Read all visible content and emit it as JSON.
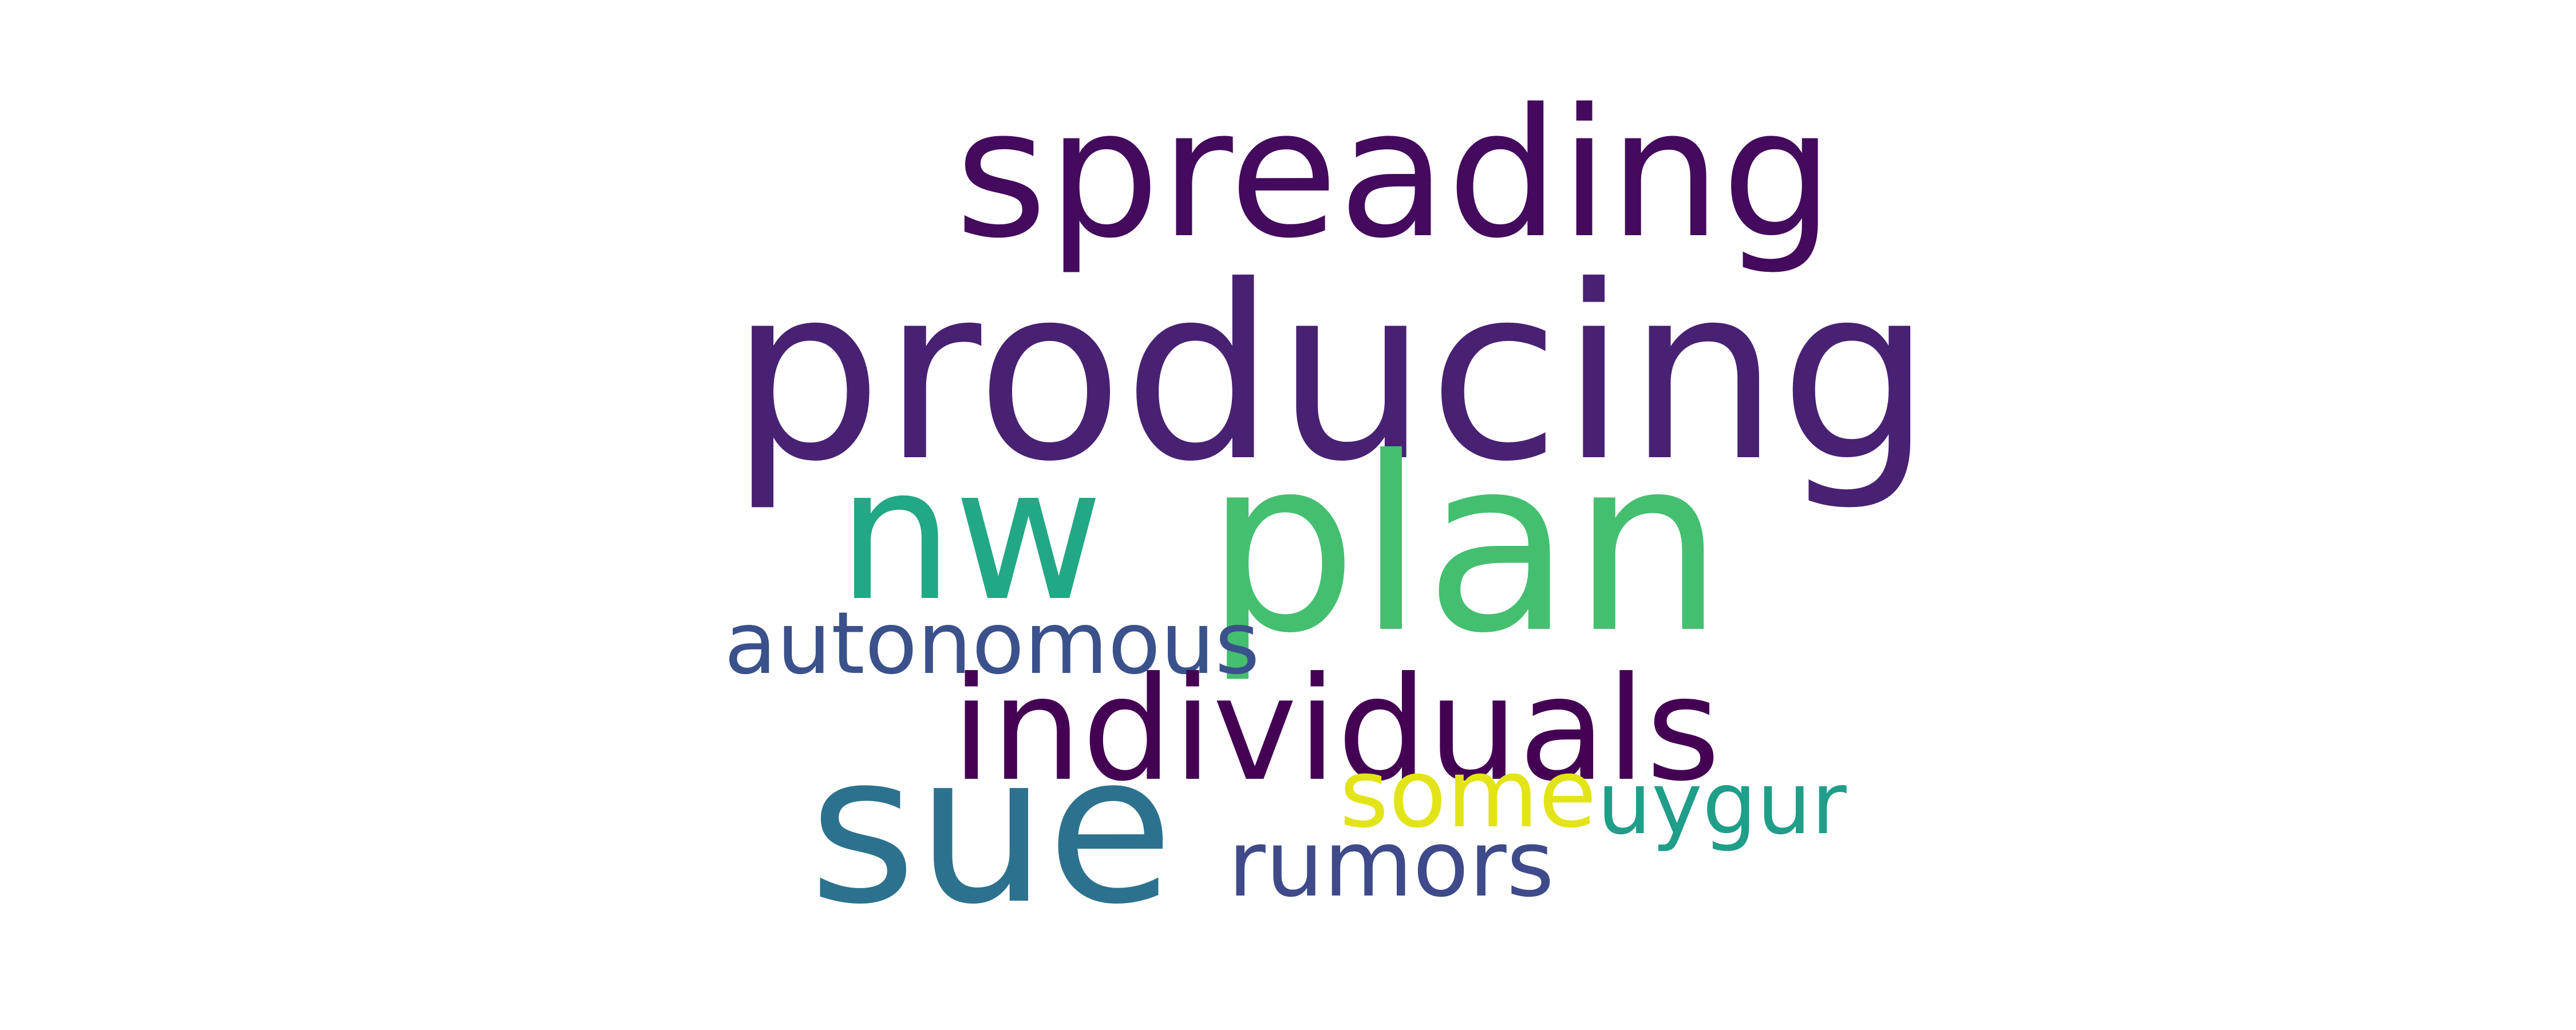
{
  "words": {
    "spreading": {
      "text": "spreading",
      "color": "#440a5e"
    },
    "producing": {
      "text": "producing",
      "color": "#482173"
    },
    "nw": {
      "text": "nw",
      "color": "#22a884"
    },
    "plan": {
      "text": "plan",
      "color": "#44bf70"
    },
    "autonomous": {
      "text": "autonomous",
      "color": "#3b518b"
    },
    "individuals": {
      "text": "individuals",
      "color": "#440154"
    },
    "sue": {
      "text": "sue",
      "color": "#2c728e"
    },
    "some": {
      "text": "some",
      "color": "#e2e418"
    },
    "uygur": {
      "text": "uygur",
      "color": "#1f9e89"
    },
    "rumors": {
      "text": "rumors",
      "color": "#3e4a89"
    }
  }
}
